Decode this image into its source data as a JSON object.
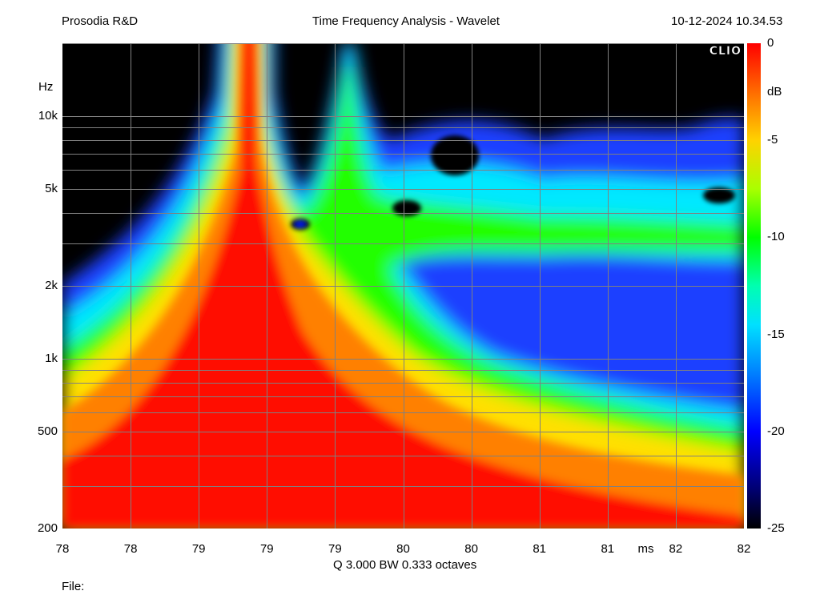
{
  "header": {
    "left": "Prosodia R&D",
    "center": "Time Frequency Analysis - Wavelet",
    "right": "10-12-2024 10.34.53"
  },
  "footer": {
    "params": "Q 3.000 BW 0.333 octaves",
    "file_label": "File:"
  },
  "logo": "CLIO",
  "chart_data": {
    "type": "heatmap",
    "title": "Time Frequency Analysis - Wavelet",
    "xlabel": "ms",
    "ylabel": "Hz",
    "colorbar_label": "dB",
    "y_scale": "log",
    "ylim": [
      200,
      20000
    ],
    "xlim": [
      78,
      82
    ],
    "x_ticks": [
      "78",
      "78",
      "79",
      "79",
      "79",
      "80",
      "80",
      "81",
      "81",
      "ms",
      "82",
      "82"
    ],
    "y_ticks": [
      {
        "label": "10k",
        "value": 10000
      },
      {
        "label": "5k",
        "value": 5000
      },
      {
        "label": "2k",
        "value": 2000
      },
      {
        "label": "1k",
        "value": 1000
      },
      {
        "label": "500",
        "value": 500
      },
      {
        "label": "200",
        "value": 200
      }
    ],
    "colorbar_ticks": [
      {
        "label": "0",
        "value": 0
      },
      {
        "label": "-5",
        "value": -5
      },
      {
        "label": "-10",
        "value": -10
      },
      {
        "label": "-15",
        "value": -15
      },
      {
        "label": "-20",
        "value": -20
      },
      {
        "label": "-25",
        "value": -25
      }
    ],
    "zlim": [
      -25,
      0
    ],
    "grid": true
  }
}
